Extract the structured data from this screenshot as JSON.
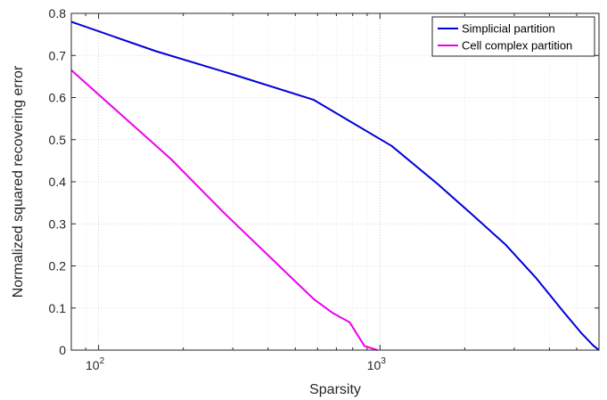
{
  "chart_data": {
    "type": "line",
    "xlabel": "Sparsity",
    "ylabel": "Normalized squared recovering error",
    "xscale": "log",
    "xlim": [
      80,
      6000
    ],
    "ylim": [
      0,
      0.8
    ],
    "xticks": [
      {
        "value": 100,
        "base": "10",
        "exp": "2"
      },
      {
        "value": 1000,
        "base": "10",
        "exp": "3"
      }
    ],
    "yticks": [
      "0",
      "0.1",
      "0.2",
      "0.3",
      "0.4",
      "0.5",
      "0.6",
      "0.7",
      "0.8"
    ],
    "grid": true,
    "legend_position": "top-right",
    "series": [
      {
        "name": "Simplicial partition",
        "color": "#0000d9",
        "points": [
          [
            80,
            0.78
          ],
          [
            160,
            0.71
          ],
          [
            300,
            0.655
          ],
          [
            580,
            0.595
          ],
          [
            1100,
            0.485
          ],
          [
            1600,
            0.395
          ],
          [
            2100,
            0.325
          ],
          [
            2800,
            0.25
          ],
          [
            3600,
            0.17
          ],
          [
            4500,
            0.09
          ],
          [
            5200,
            0.04
          ],
          [
            5700,
            0.012
          ],
          [
            6000,
            0.0
          ]
        ]
      },
      {
        "name": "Cell complex partition",
        "color": "#ee00ee",
        "points": [
          [
            80,
            0.665
          ],
          [
            180,
            0.455
          ],
          [
            280,
            0.325
          ],
          [
            580,
            0.122
          ],
          [
            680,
            0.088
          ],
          [
            780,
            0.066
          ],
          [
            880,
            0.01
          ],
          [
            980,
            0.0
          ]
        ]
      }
    ]
  }
}
